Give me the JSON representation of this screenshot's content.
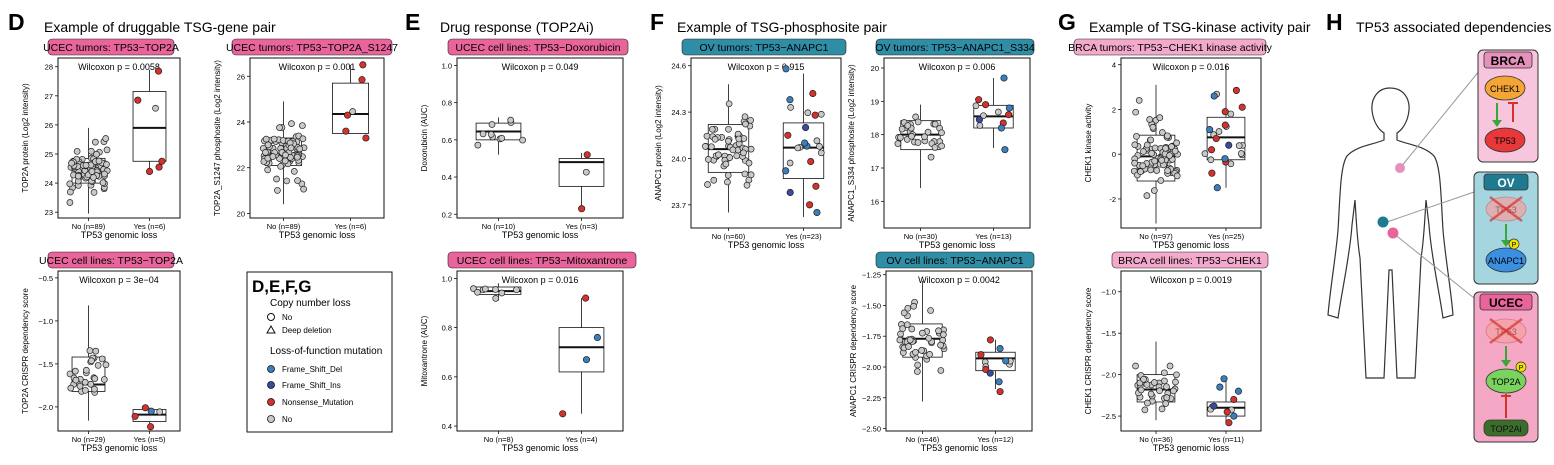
{
  "colors": {
    "ucec": "#e8649b",
    "ov": "#2f8ea5",
    "brca_light": "#f2a9cc",
    "no_fill": "#c9c9c9",
    "frame_shift_del": "#3a7fbf",
    "frame_shift_ins": "#3b4aa0",
    "nonsense": "#d7312c",
    "pathway_green": "#3aa63a",
    "inhibit_red": "#d7312c"
  },
  "sections": [
    {
      "letter": "D",
      "title": "Example of druggable TSG-gene pair"
    },
    {
      "letter": "E",
      "title": "Drug response (TOP2Ai)"
    },
    {
      "letter": "F",
      "title": "Example of TSG-phosphosite pair"
    },
    {
      "letter": "G",
      "title": "Example of TSG-kinase activity pair"
    },
    {
      "letter": "H",
      "title": "TP53 associated dependencies"
    }
  ],
  "legend": {
    "heading": "D,E,F,G",
    "cnl_title": "Copy number loss",
    "cnl_items": [
      "No",
      "Deep deletion"
    ],
    "lof_title": "Loss-of-function mutation",
    "lof_items": [
      "Frame_Shift_Del",
      "Frame_Shift_Ins",
      "Nonsense_Mutation",
      "No"
    ]
  },
  "chart_data": [
    {
      "id": "d1",
      "type": "box",
      "banner": "UCEC tumors: TP53−TOP2A",
      "banner_color": "ucec",
      "pval": "Wilcoxon p = 0.0058",
      "ylabel": "TOP2A protein (Log2 intensity)",
      "xlabel": "TP53 genomic loss",
      "ylim": [
        22.8,
        28.3
      ],
      "yticks": [
        23,
        24,
        25,
        26,
        27,
        28
      ],
      "groups": [
        {
          "label": "No (n=89)",
          "q1": 24.0,
          "med": 24.3,
          "q3": 24.85,
          "wlo": 22.95,
          "whi": 25.9
        },
        {
          "label": "Yes (n=6)",
          "q1": 24.75,
          "med": 25.9,
          "q3": 27.15,
          "wlo": 24.3,
          "whi": 27.9
        }
      ],
      "red": [
        [
          1,
          27.85
        ],
        [
          1,
          26.85
        ],
        [
          1,
          24.75
        ],
        [
          1,
          24.4
        ],
        [
          1,
          24.55
        ]
      ]
    },
    {
      "id": "d2",
      "type": "box",
      "banner": "UCEC tumors: TP53−TOP2A_S1247",
      "banner_color": "ucec",
      "pval": "Wilcoxon p = 0.001",
      "ylabel": "TOP2A_S1247 phosphosite (Log2 intensity)",
      "xlabel": "TP53 genomic loss",
      "ylim": [
        19.8,
        26.8
      ],
      "yticks": [
        20,
        22,
        24,
        26
      ],
      "groups": [
        {
          "label": "No (n=89)",
          "q1": 22.1,
          "med": 22.6,
          "q3": 23.3,
          "wlo": 20.4,
          "whi": 24.9
        },
        {
          "label": "Yes (n=6)",
          "q1": 23.5,
          "med": 24.35,
          "q3": 25.7,
          "wlo": 23.5,
          "whi": 26.5
        }
      ],
      "red": [
        [
          1,
          26.5
        ],
        [
          1,
          25.85
        ],
        [
          1,
          24.3
        ],
        [
          1,
          23.6
        ],
        [
          1,
          23.3
        ]
      ]
    },
    {
      "id": "d3",
      "type": "box",
      "banner": "UCEC cell lines: TP53−TOP2A",
      "banner_color": "ucec",
      "pval": "Wilcoxon p = 3e−04",
      "ylabel": "TOP2A CRISPR dependency score",
      "xlabel": "TP53 genomic loss",
      "ylim": [
        -2.28,
        -0.42
      ],
      "yticks": [
        -0.5,
        -1.0,
        -1.5,
        -2.0
      ],
      "yticklabels": [
        "−0.5",
        "−1.0",
        "−1.5",
        "−2.0"
      ],
      "groups": [
        {
          "label": "No (n=29)",
          "q1": -1.82,
          "med": -1.74,
          "q3": -1.42,
          "wlo": -2.16,
          "whi": -0.82
        },
        {
          "label": "Yes (n=5)",
          "q1": -2.17,
          "med": -2.09,
          "q3": -2.03,
          "wlo": -2.19,
          "whi": -2.01
        }
      ],
      "red": [
        [
          1,
          -2.01
        ],
        [
          1,
          -2.23
        ],
        [
          1,
          -2.11
        ]
      ],
      "blue": [
        [
          1,
          -2.05
        ]
      ]
    },
    {
      "id": "e1",
      "type": "box",
      "banner": "UCEC cell lines: TP53−Doxorubicin",
      "banner_color": "ucec",
      "pval": "Wilcoxon p = 0.049",
      "ylabel": "Doxorubicin (AUC)",
      "xlabel": "TP53 genomic loss",
      "ylim": [
        0.18,
        1.04
      ],
      "yticks": [
        0.2,
        0.4,
        0.6,
        0.8,
        1.0
      ],
      "yticklabels": [
        "0.2",
        "0.4",
        "0.6",
        "0.8",
        "1.0"
      ],
      "groups": [
        {
          "label": "No (n=10)",
          "q1": 0.6,
          "med": 0.645,
          "q3": 0.69,
          "wlo": 0.52,
          "whi": 0.72
        },
        {
          "label": "Yes (n=3)",
          "q1": 0.35,
          "med": 0.48,
          "q3": 0.5,
          "wlo": 0.22,
          "whi": 0.53
        }
      ],
      "red": [
        [
          1,
          0.52
        ],
        [
          1,
          0.23
        ]
      ]
    },
    {
      "id": "e2",
      "type": "box",
      "banner": "UCEC cell lines: TP53−Mitoxantrone",
      "banner_color": "ucec",
      "pval": "Wilcoxon p = 0.016",
      "ylabel": "Mitoxantrone (AUC)",
      "xlabel": "TP53 genomic loss",
      "ylim": [
        0.38,
        1.03
      ],
      "yticks": [
        0.4,
        0.6,
        0.8,
        1.0
      ],
      "yticklabels": [
        "0.4",
        "0.6",
        "0.8",
        "1.0"
      ],
      "groups": [
        {
          "label": "No (n=8)",
          "q1": 0.935,
          "med": 0.948,
          "q3": 0.965,
          "wlo": 0.91,
          "whi": 0.98
        },
        {
          "label": "Yes (n=4)",
          "q1": 0.62,
          "med": 0.72,
          "q3": 0.8,
          "wlo": 0.45,
          "whi": 0.92
        }
      ],
      "red": [
        [
          1,
          0.92
        ],
        [
          1,
          0.45
        ]
      ],
      "blue": [
        [
          1,
          0.76
        ],
        [
          1,
          0.67
        ]
      ]
    },
    {
      "id": "f1",
      "type": "box",
      "banner": "OV tumors: TP53−ANAPC1",
      "banner_color": "ov",
      "pval": "Wilcoxon p = 0.915",
      "ylabel": "ANAPC1 protein (Log2 intensity)",
      "xlabel": "TP53 genomic loss",
      "ylim": [
        23.55,
        24.65
      ],
      "yticks": [
        23.7,
        24.0,
        24.3,
        24.6
      ],
      "yticklabels": [
        "23.7",
        "24.0",
        "24.3",
        "24.6"
      ],
      "groups": [
        {
          "label": "No (n=60)",
          "q1": 23.91,
          "med": 24.06,
          "q3": 24.22,
          "wlo": 23.65,
          "whi": 24.48
        },
        {
          "label": "Yes (n=23)",
          "q1": 23.87,
          "med": 24.07,
          "q3": 24.23,
          "wlo": 23.62,
          "whi": 24.55
        }
      ],
      "red": [
        [
          1,
          24.42
        ],
        [
          1,
          24.28
        ],
        [
          1,
          24.15
        ],
        [
          1,
          23.98
        ],
        [
          1,
          23.82
        ],
        [
          1,
          23.7
        ]
      ],
      "blue": [
        [
          1,
          24.58
        ],
        [
          1,
          24.38
        ],
        [
          1,
          24.2
        ],
        [
          1,
          24.08
        ],
        [
          1,
          23.92
        ],
        [
          1,
          23.78
        ],
        [
          1,
          23.65
        ],
        [
          1,
          24.1
        ]
      ]
    },
    {
      "id": "f2",
      "type": "box",
      "banner": "OV tumors: TP53−ANAPC1_S334",
      "banner_color": "ov",
      "pval": "Wilcoxon p = 0.006",
      "ylabel": "ANAPC1_S334 phosphosite (Log2 intensity)",
      "xlabel": "TP53 genomic loss",
      "ylim": [
        15.2,
        20.3
      ],
      "yticks": [
        16,
        17,
        18,
        19,
        20
      ],
      "groups": [
        {
          "label": "No (n=30)",
          "q1": 17.55,
          "med": 18.0,
          "q3": 18.42,
          "wlo": 16.4,
          "whi": 18.9
        },
        {
          "label": "Yes (n=13)",
          "q1": 18.2,
          "med": 18.55,
          "q3": 18.88,
          "wlo": 17.6,
          "whi": 19.7
        }
      ],
      "red": [
        [
          1,
          19.05
        ],
        [
          1,
          18.6
        ],
        [
          1,
          18.35
        ],
        [
          1,
          18.9
        ]
      ],
      "blue": [
        [
          1,
          19.7
        ],
        [
          1,
          18.8
        ],
        [
          1,
          18.45
        ],
        [
          1,
          18.2
        ],
        [
          1,
          17.55
        ]
      ]
    },
    {
      "id": "f3",
      "type": "box",
      "banner": "OV cell lines: TP53−ANAPC1",
      "banner_color": "ov",
      "pval": "Wilcoxon p = 0.0042",
      "ylabel": "ANAPC1 CRISPR dependency score",
      "xlabel": "TP53 genomic loss",
      "ylim": [
        -2.52,
        -1.22
      ],
      "yticks": [
        -1.25,
        -1.5,
        -1.75,
        -2.0,
        -2.25,
        -2.5
      ],
      "yticklabels": [
        "−1.25",
        "−1.50",
        "−1.75",
        "−2.00",
        "−2.25",
        "−2.50"
      ],
      "groups": [
        {
          "label": "No (n=46)",
          "q1": -1.92,
          "med": -1.77,
          "q3": -1.65,
          "wlo": -2.28,
          "whi": -1.3
        },
        {
          "label": "Yes (n=12)",
          "q1": -2.03,
          "med": -1.93,
          "q3": -1.88,
          "wlo": -2.18,
          "whi": -1.78
        }
      ],
      "red": [
        [
          1,
          -1.78
        ],
        [
          1,
          -1.9
        ],
        [
          1,
          -2.02
        ],
        [
          1,
          -2.2
        ]
      ],
      "blue": [
        [
          1,
          -1.85
        ],
        [
          1,
          -1.95
        ],
        [
          1,
          -2.05
        ],
        [
          1,
          -2.12
        ]
      ]
    },
    {
      "id": "g1",
      "type": "box",
      "banner": "BRCA tumors: TP53−CHEK1 kinase activity",
      "banner_color": "brca_light",
      "pval": "Wilcoxon p = 0.016",
      "ylabel": "CHEK1 kinase activity",
      "xlabel": "TP53 genomic loss",
      "ylim": [
        -3.3,
        4.3
      ],
      "yticks": [
        -2,
        0,
        2,
        4
      ],
      "groups": [
        {
          "label": "No (n=97)",
          "q1": -1.2,
          "med": -0.1,
          "q3": 0.85,
          "wlo": -3.1,
          "whi": 3.1
        },
        {
          "label": "Yes (n=25)",
          "q1": -0.25,
          "med": 0.75,
          "q3": 1.65,
          "wlo": -1.5,
          "whi": 4.0
        }
      ],
      "red": [
        [
          1,
          2.85
        ],
        [
          1,
          2.1
        ],
        [
          1,
          1.3
        ],
        [
          1,
          0.7
        ],
        [
          1,
          0.2
        ],
        [
          1,
          -0.35
        ],
        [
          1,
          -0.85
        ],
        [
          1,
          1.9
        ]
      ],
      "blue": [
        [
          1,
          2.6
        ],
        [
          1,
          1.1
        ],
        [
          1,
          0.4
        ],
        [
          1,
          -0.2
        ],
        [
          1,
          -1.5
        ]
      ]
    },
    {
      "id": "g2",
      "type": "box",
      "banner": "BRCA cell lines: TP53−CHEK1",
      "banner_color": "brca_light",
      "pval": "Wilcoxon p = 0.0019",
      "ylabel": "CHEK1 CRISPR dependency score",
      "xlabel": "TP53 genomic loss",
      "ylim": [
        -2.68,
        -0.75
      ],
      "yticks": [
        -1.0,
        -1.5,
        -2.0,
        -2.5
      ],
      "yticklabels": [
        "−1.0",
        "−1.5",
        "−2.0",
        "−2.5"
      ],
      "groups": [
        {
          "label": "No (n=36)",
          "q1": -2.33,
          "med": -2.18,
          "q3": -2.0,
          "wlo": -2.55,
          "whi": -1.6
        },
        {
          "label": "Yes (n=11)",
          "q1": -2.5,
          "med": -2.4,
          "q3": -2.33,
          "wlo": -2.6,
          "whi": -2.05
        }
      ],
      "red": [
        [
          1,
          -2.3
        ],
        [
          1,
          -2.45
        ],
        [
          1,
          -2.58
        ]
      ],
      "blue": [
        [
          1,
          -2.05
        ],
        [
          1,
          -2.2
        ],
        [
          1,
          -2.38
        ],
        [
          1,
          -2.5
        ],
        [
          1,
          -2.15
        ]
      ]
    }
  ],
  "pathways": {
    "brca": {
      "label": "BRCA",
      "nodes": [
        "CHEK1",
        "TP53"
      ]
    },
    "ov": {
      "label": "OV",
      "nodes": [
        "TP53",
        "ANAPC1"
      ],
      "phospho": "P"
    },
    "ucec": {
      "label": "UCEC",
      "nodes": [
        "TP53",
        "TOP2A",
        "TOP2Ai"
      ],
      "phospho": "P"
    }
  }
}
